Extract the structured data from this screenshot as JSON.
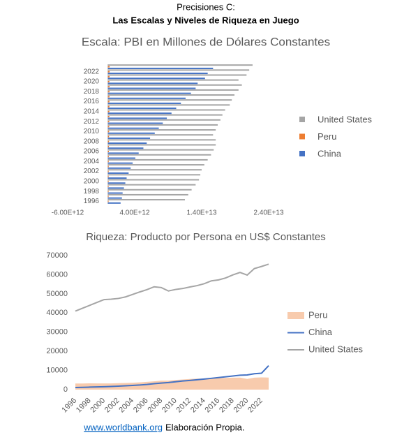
{
  "header": {
    "subtitle": "Precisiones C:",
    "title": "Las Escalas y Niveles de Riqueza en Juego"
  },
  "footer": {
    "link": "www.worldbank.org",
    "text": "Elaboración Propia."
  },
  "chart_data": [
    {
      "type": "barh",
      "title": "Escala: PBI en Millones de Dólares Constantes",
      "categories": [
        "1996",
        null,
        "1998",
        null,
        "2000",
        null,
        "2002",
        null,
        "2004",
        null,
        "2006",
        null,
        "2008",
        null,
        "2010",
        null,
        "2012",
        null,
        "2014",
        null,
        "2016",
        null,
        "2018",
        null,
        "2020",
        null,
        "2022",
        null
      ],
      "series": [
        {
          "name": "United States",
          "color": "#a5a5a5",
          "values": [
            11500000000000.0,
            12000000000000.0,
            12500000000000.0,
            13100000000000.0,
            13600000000000.0,
            13800000000000.0,
            14000000000000.0,
            14400000000000.0,
            14900000000000.0,
            15400000000000.0,
            15800000000000.0,
            16100000000000.0,
            16100000000000.0,
            15700000000000.0,
            16100000000000.0,
            16400000000000.0,
            16800000000000.0,
            17100000000000.0,
            17500000000000.0,
            18200000000000.0,
            18500000000000.0,
            18900000000000.0,
            19500000000000.0,
            20000000000000.0,
            19500000000000.0,
            20700000000000.0,
            21100000000000.0,
            21600000000000.0
          ]
        },
        {
          "name": "Peru",
          "color": "#ed7d31",
          "values": [
            100000000000.0,
            105000000000.0,
            105000000000.0,
            105000000000.0,
            110000000000.0,
            110000000000.0,
            115000000000.0,
            120000000000.0,
            125000000000.0,
            135000000000.0,
            145000000000.0,
            155000000000.0,
            170000000000.0,
            170000000000.0,
            185000000000.0,
            195000000000.0,
            205000000000.0,
            215000000000.0,
            220000000000.0,
            225000000000.0,
            235000000000.0,
            240000000000.0,
            250000000000.0,
            255000000000.0,
            225000000000.0,
            250000000000.0,
            260000000000.0,
            260000000000.0
          ]
        },
        {
          "name": "China",
          "color": "#4472c4",
          "values": [
            1900000000000.0,
            2100000000000.0,
            2200000000000.0,
            2400000000000.0,
            2600000000000.0,
            2800000000000.0,
            3100000000000.0,
            3400000000000.0,
            3700000000000.0,
            4100000000000.0,
            4600000000000.0,
            5300000000000.0,
            5800000000000.0,
            6300000000000.0,
            7000000000000.0,
            7600000000000.0,
            8200000000000.0,
            8800000000000.0,
            9500000000000.0,
            10200000000000.0,
            10900000000000.0,
            11600000000000.0,
            12400000000000.0,
            13100000000000.0,
            13400000000000.0,
            14500000000000.0,
            14900000000000.0,
            15700000000000.0
          ]
        }
      ],
      "xlim": [
        -6000000000000.0,
        24000000000000.0
      ],
      "xticks": [
        {
          "value": -6000000000000.0,
          "label": "-6.00E+12"
        },
        {
          "value": 4000000000000.0,
          "label": "4.00E+12"
        },
        {
          "value": 14000000000000.0,
          "label": "1.40E+13"
        },
        {
          "value": 24000000000000.0,
          "label": "2.40E+13"
        }
      ],
      "grid": false,
      "legend": "right"
    },
    {
      "type": "line",
      "title": "Riqueza: Producto por Persona en US$ Constantes",
      "categories": [
        "1996",
        null,
        "1998",
        null,
        "2000",
        null,
        "2002",
        null,
        "2004",
        null,
        "2006",
        null,
        "2008",
        null,
        "2010",
        null,
        "2012",
        null,
        "2014",
        null,
        "2016",
        null,
        "2018",
        null,
        "2020",
        null,
        "2022",
        null
      ],
      "series": [
        {
          "name": "Peru",
          "color": "#f8cbad",
          "style": "area",
          "values": [
            3200,
            3200,
            3300,
            3250,
            3250,
            3250,
            3350,
            3450,
            3600,
            3800,
            4050,
            4350,
            4700,
            4700,
            5050,
            5300,
            5550,
            5750,
            5800,
            5900,
            6000,
            6100,
            6250,
            6300,
            5550,
            6250,
            6400,
            6300
          ]
        },
        {
          "name": "China",
          "color": "#4472c4",
          "style": "line",
          "values": [
            1100,
            1200,
            1300,
            1400,
            1500,
            1650,
            1800,
            2000,
            2200,
            2400,
            2700,
            3100,
            3400,
            3700,
            4100,
            4500,
            4800,
            5150,
            5500,
            5900,
            6300,
            6700,
            7100,
            7500,
            7650,
            8300,
            8550,
            12500
          ]
        },
        {
          "name": "United States",
          "color": "#a5a5a5",
          "style": "line",
          "values": [
            41000,
            42500,
            44000,
            45500,
            47000,
            47200,
            47600,
            48400,
            49700,
            51000,
            52200,
            53700,
            53300,
            51500,
            52300,
            52800,
            53600,
            54300,
            55300,
            56800,
            57300,
            58300,
            59900,
            61200,
            59800,
            63200,
            64300,
            65500
          ]
        }
      ],
      "ylim": [
        0,
        70000
      ],
      "yticks": [
        0,
        10000,
        20000,
        30000,
        40000,
        50000,
        60000,
        70000
      ],
      "grid": false,
      "legend": "right"
    }
  ]
}
